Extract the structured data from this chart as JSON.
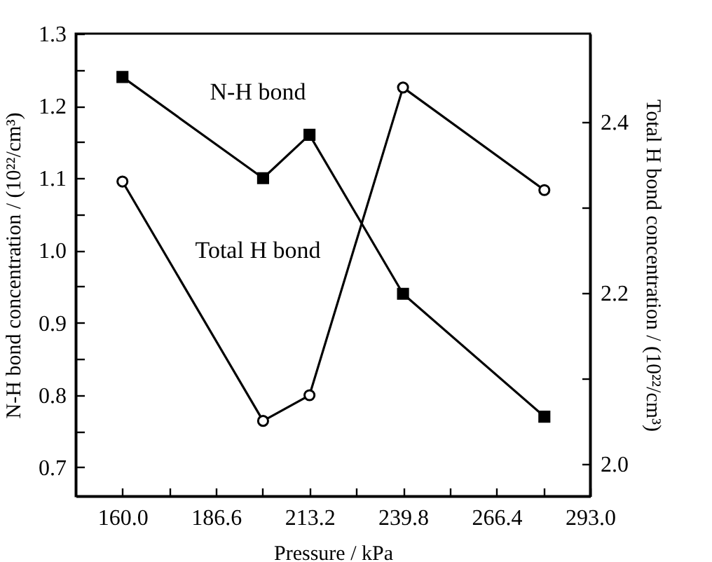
{
  "chart_data": {
    "type": "line",
    "xlabel": "Pressure / kPa",
    "ylabel": "N-H bond concentration / (10²²/cm³)",
    "y2label": "Total H bond concentration / (10²²/cm³)",
    "x": [
      160,
      200,
      213.2,
      239.8,
      280
    ],
    "series": [
      {
        "name": "N-H bond",
        "color": "#000000",
        "marker": "square",
        "values": [
          1.24,
          1.1,
          1.16,
          0.94,
          0.77
        ]
      },
      {
        "name": "Total H bond",
        "color": "#000000",
        "marker": "circle",
        "axis": "y2",
        "values": [
          2.33,
          2.05,
          2.08,
          2.44,
          2.32
        ]
      }
    ],
    "xlim": [
      146.7,
      293
    ],
    "xticks": [
      {
        "value": 160,
        "label": "160.0"
      },
      {
        "value": 173.3,
        "label": null
      },
      186.6,
      {
        "value": 199.9,
        "label": null
      },
      213.2,
      {
        "value": 226.5,
        "label": null
      },
      239.8,
      {
        "value": 253.1,
        "label": null
      },
      266.4,
      {
        "value": 279.7,
        "label": null
      },
      {
        "value": 293,
        "label": "293.0"
      }
    ],
    "ylim": [
      0.66,
      1.3
    ],
    "yticks": [
      0.7,
      {
        "value": 0.75,
        "label": null
      },
      0.8,
      {
        "value": 0.85,
        "label": null
      },
      0.9,
      {
        "value": 0.95,
        "label": null
      },
      {
        "value": 1,
        "label": "1.0"
      },
      {
        "value": 1.05,
        "label": null
      },
      1.1,
      {
        "value": 1.15,
        "label": null
      },
      1.2,
      {
        "value": 1.25,
        "label": null
      },
      1.3
    ],
    "y2lim": [
      1.962,
      2.503
    ],
    "y2ticks": [
      {
        "value": 2,
        "label": "2.0"
      },
      {
        "value": 2.1,
        "label": null
      },
      2.2,
      {
        "value": 2.3,
        "label": null
      },
      2.4
    ],
    "grid": false,
    "line_style": "solid"
  }
}
